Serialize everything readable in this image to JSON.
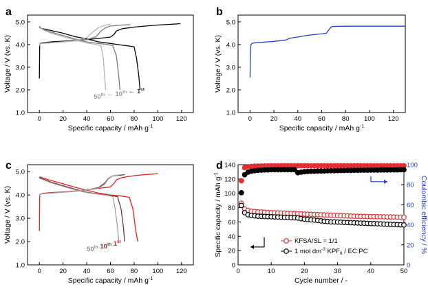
{
  "panels": {
    "a": {
      "label": "a",
      "chart_data": {
        "type": "line",
        "xlabel": "Specific capacity / mAh g",
        "xlabel_sup": "-1",
        "ylabel": "Voltage / V (vs. K)",
        "xlim": [
          -10,
          130
        ],
        "ylim": [
          1.0,
          5.3
        ],
        "xticks": [
          0,
          20,
          40,
          60,
          80,
          100,
          120
        ],
        "yticks": [
          1.0,
          2.0,
          3.0,
          4.0,
          5.0
        ],
        "cycle_labels": [
          {
            "text": "50",
            "sup": "th",
            "color": "#9a9a9a"
          },
          {
            "text": "← 10",
            "sup": "th",
            "color": "#9a9a9a"
          },
          {
            "text": "← 1",
            "sup": "st",
            "color": "#333333"
          }
        ],
        "series": [
          {
            "name": "1st charge",
            "color": "#000000",
            "x": [
              0,
              0.3,
              1,
              2,
              5,
              10,
              20,
              30,
              40,
              50,
              60,
              63,
              65,
              70,
              80,
              90,
              100,
              110,
              119
            ],
            "y": [
              2.5,
              4.0,
              4.05,
              4.07,
              4.09,
              4.12,
              4.15,
              4.18,
              4.22,
              4.27,
              4.33,
              4.45,
              4.6,
              4.7,
              4.77,
              4.82,
              4.86,
              4.89,
              4.92
            ]
          },
          {
            "name": "1st discharge",
            "color": "#000000",
            "x": [
              0,
              1,
              5,
              10,
              20,
              30,
              40,
              50,
              60,
              70,
              75,
              80,
              82,
              84,
              85
            ],
            "y": [
              4.8,
              4.72,
              4.68,
              4.62,
              4.5,
              4.35,
              4.25,
              4.12,
              4.05,
              3.97,
              3.94,
              3.9,
              3.4,
              2.6,
              2.0
            ]
          },
          {
            "name": "10th charge",
            "color": "#7a7a7a",
            "x": [
              0,
              0.5,
              2,
              10,
              20,
              30,
              40,
              48,
              52,
              56,
              60,
              70,
              77
            ],
            "y": [
              3.95,
              4.02,
              4.05,
              4.08,
              4.12,
              4.16,
              4.22,
              4.35,
              4.6,
              4.75,
              4.82,
              4.86,
              4.88
            ]
          },
          {
            "name": "10th discharge",
            "color": "#7a7a7a",
            "x": [
              0,
              5,
              10,
              20,
              30,
              40,
              50,
              58,
              62,
              65,
              67,
              68
            ],
            "y": [
              4.75,
              4.65,
              4.55,
              4.4,
              4.25,
              4.12,
              4.05,
              4.0,
              3.95,
              3.5,
              2.6,
              2.0
            ]
          },
          {
            "name": "50th charge",
            "color": "#b3b3b3",
            "x": [
              0,
              0.5,
              2,
              10,
              20,
              30,
              40,
              45,
              50,
              55,
              60
            ],
            "y": [
              3.95,
              4.02,
              4.05,
              4.08,
              4.12,
              4.16,
              4.3,
              4.55,
              4.75,
              4.85,
              4.9
            ]
          },
          {
            "name": "50th discharge",
            "color": "#b3b3b3",
            "x": [
              0,
              5,
              10,
              20,
              30,
              40,
              48,
              52,
              54,
              55,
              56
            ],
            "y": [
              4.75,
              4.6,
              4.5,
              4.35,
              4.2,
              4.07,
              4.0,
              3.95,
              3.4,
              2.6,
              2.0
            ]
          }
        ]
      }
    },
    "b": {
      "label": "b",
      "chart_data": {
        "type": "line",
        "xlabel": "Specific capacity / mAh g",
        "xlabel_sup": "-1",
        "ylabel": "Voltage / V (vs. K)",
        "xlim": [
          -10,
          130
        ],
        "ylim": [
          1.0,
          5.3
        ],
        "xticks": [
          0,
          20,
          40,
          60,
          80,
          100,
          120
        ],
        "yticks": [
          1.0,
          2.0,
          3.0,
          4.0,
          5.0
        ],
        "series": [
          {
            "name": "charge",
            "color": "#1f3fbf",
            "x": [
              0,
              0.3,
              0.8,
              2,
              5,
              10,
              15,
              20,
              25,
              30,
              33,
              36,
              40,
              45,
              50,
              55,
              60,
              64,
              66,
              68,
              70,
              80,
              90,
              100,
              110,
              120,
              130
            ],
            "y": [
              2.55,
              3.7,
              4.0,
              4.06,
              4.08,
              4.1,
              4.12,
              4.14,
              4.17,
              4.2,
              4.27,
              4.3,
              4.33,
              4.38,
              4.42,
              4.45,
              4.47,
              4.5,
              4.65,
              4.78,
              4.8,
              4.81,
              4.81,
              4.81,
              4.81,
              4.81,
              4.81
            ]
          }
        ]
      }
    },
    "c": {
      "label": "c",
      "chart_data": {
        "type": "line",
        "xlabel": "Specific capacity / mAh g",
        "xlabel_sup": "-1",
        "ylabel": "Voltage / V (vs. K)",
        "xlim": [
          -10,
          130
        ],
        "ylim": [
          1.0,
          5.3
        ],
        "xticks": [
          0,
          20,
          40,
          60,
          80,
          100,
          120
        ],
        "yticks": [
          1.0,
          2.0,
          3.0,
          4.0,
          5.0
        ],
        "cycle_labels": [
          {
            "text": "50",
            "sup": "th",
            "color": "#8a8a8a"
          },
          {
            "text": "10",
            "sup": "th",
            "color": "#7a3030"
          },
          {
            "text": "1",
            "sup": "st",
            "color": "#e02020"
          }
        ],
        "series": [
          {
            "name": "1st charge",
            "color": "#e02020",
            "x": [
              0,
              0.3,
              1,
              2,
              5,
              10,
              20,
              30,
              40,
              50,
              60,
              63,
              65,
              70,
              80,
              90,
              100
            ],
            "y": [
              2.45,
              4.0,
              4.04,
              4.06,
              4.08,
              4.1,
              4.13,
              4.17,
              4.22,
              4.28,
              4.35,
              4.5,
              4.65,
              4.75,
              4.83,
              4.88,
              4.91
            ]
          },
          {
            "name": "1st discharge",
            "color": "#e02020",
            "x": [
              0,
              5,
              10,
              20,
              30,
              40,
              50,
              60,
              70,
              76,
              79,
              81,
              83
            ],
            "y": [
              4.78,
              4.7,
              4.62,
              4.48,
              4.33,
              4.2,
              4.08,
              4.0,
              3.95,
              3.9,
              3.4,
              2.6,
              2.0
            ]
          },
          {
            "name": "10th charge",
            "color": "#7a3030",
            "x": [
              0,
              0.5,
              2,
              10,
              20,
              30,
              40,
              50,
              55,
              58,
              62,
              72
            ],
            "y": [
              3.95,
              4.02,
              4.05,
              4.08,
              4.12,
              4.16,
              4.22,
              4.32,
              4.5,
              4.7,
              4.82,
              4.87
            ]
          },
          {
            "name": "10th discharge",
            "color": "#7a3030",
            "x": [
              0,
              5,
              10,
              20,
              30,
              40,
              50,
              60,
              66,
              69,
              71,
              72
            ],
            "y": [
              4.75,
              4.65,
              4.55,
              4.4,
              4.25,
              4.12,
              4.04,
              3.98,
              3.93,
              3.4,
              2.6,
              2.0
            ]
          },
          {
            "name": "50th charge",
            "color": "#a0a0a0",
            "x": [
              0,
              0.5,
              2,
              10,
              20,
              30,
              40,
              50,
              55,
              58,
              62,
              68
            ],
            "y": [
              3.95,
              4.02,
              4.05,
              4.08,
              4.12,
              4.16,
              4.22,
              4.3,
              4.45,
              4.68,
              4.82,
              4.87
            ]
          },
          {
            "name": "50th discharge",
            "color": "#a0a0a0",
            "x": [
              0,
              5,
              10,
              20,
              30,
              40,
              50,
              58,
              62,
              64,
              66,
              67
            ],
            "y": [
              4.72,
              4.62,
              4.52,
              4.37,
              4.22,
              4.1,
              4.03,
              3.98,
              3.93,
              3.4,
              2.6,
              2.0
            ]
          }
        ]
      }
    },
    "d": {
      "label": "d",
      "chart_data": {
        "type": "scatter",
        "xlabel": "Cycle number / -",
        "ylabel": "Specific capacity / mAh g",
        "ylabel_sup": "-1",
        "y2label": "Coulombic efficiency / %",
        "xlim": [
          0,
          50
        ],
        "ylim": [
          0,
          140
        ],
        "y2lim": [
          0,
          100
        ],
        "xticks": [
          0,
          10,
          20,
          30,
          40,
          50
        ],
        "yticks": [
          0,
          20,
          40,
          60,
          80,
          100,
          120,
          140
        ],
        "y2ticks": [
          0,
          20,
          40,
          60,
          80,
          100
        ],
        "legend": [
          {
            "text": "KFSA/SL = 1/1",
            "color": "#e03030"
          },
          {
            "text": "1 mol dm",
            "sup": "-3",
            "mid": " KPF",
            "sub": "6",
            "tail": " / EC:PC",
            "color": "#000000"
          }
        ],
        "x": [
          1,
          2,
          3,
          4,
          5,
          6,
          7,
          8,
          9,
          10,
          11,
          12,
          13,
          14,
          15,
          16,
          17,
          18,
          19,
          20,
          21,
          22,
          23,
          24,
          25,
          26,
          27,
          28,
          29,
          30,
          31,
          32,
          33,
          34,
          35,
          36,
          37,
          38,
          39,
          40,
          41,
          42,
          43,
          44,
          45,
          46,
          47,
          48,
          49,
          50
        ],
        "series": [
          {
            "name": "KFSA/SL = 1/1 capacity",
            "axis": "left",
            "color": "#e03030",
            "fill": "#ffffff",
            "values": [
              86,
              78,
              76,
              75,
              74.5,
              74,
              73.8,
              73.5,
              73.2,
              73,
              72.8,
              72.6,
              72.4,
              72.2,
              72,
              71.8,
              71.6,
              71.4,
              71.2,
              71,
              70.8,
              70.6,
              70.4,
              70.2,
              70,
              69.8,
              69.6,
              69.4,
              69.2,
              69,
              68.8,
              68.6,
              68.4,
              68.2,
              68,
              67.9,
              67.8,
              67.7,
              67.6,
              67.5,
              67.4,
              67.3,
              67.2,
              67.1,
              67,
              66.9,
              66.8,
              66.7,
              66.6,
              66.5
            ]
          },
          {
            "name": "1 mol dm-3 KPF6 / EC:PC capacity",
            "axis": "left",
            "color": "#000000",
            "fill": "#ffffff",
            "values": [
              83,
              73,
              70,
              69,
              68.5,
              68,
              67.8,
              67.6,
              67.4,
              67.2,
              67,
              66.8,
              66.6,
              66.4,
              66.2,
              66,
              65.8,
              65.5,
              64.5,
              64,
              63.5,
              63,
              62.5,
              62,
              61.5,
              61,
              60.5,
              60,
              60,
              59.8,
              59.6,
              59.4,
              59.2,
              59,
              58.8,
              58.6,
              58.4,
              58.2,
              58,
              57.8,
              57.6,
              57.4,
              57.2,
              57,
              56.8,
              56.6,
              56.4,
              56.2,
              56,
              55.8
            ]
          },
          {
            "name": "KFSA/SL = 1/1 efficiency",
            "axis": "right",
            "color": "#e03030",
            "fill": "#e03030",
            "values": [
              84,
              97,
              98,
              98.3,
              98.5,
              98.6,
              98.7,
              98.8,
              98.8,
              98.9,
              98.9,
              98.9,
              99,
              99,
              99,
              99,
              99,
              99,
              99,
              99,
              99,
              99,
              99,
              99,
              99,
              99,
              99,
              99,
              99,
              99,
              99,
              99,
              99,
              99,
              99,
              99,
              99,
              99,
              99,
              99,
              99,
              99,
              99,
              99,
              99,
              99,
              99,
              99,
              99,
              99
            ]
          },
          {
            "name": "1 mol dm-3 KPF6 / EC:PC efficiency",
            "axis": "right",
            "color": "#000000",
            "fill": "#000000",
            "values": [
              72,
              90,
              92.5,
              93.5,
              94,
              94.3,
              94.5,
              94.7,
              94.8,
              94.9,
              95,
              95,
              95,
              95,
              95,
              95,
              95,
              92,
              92.5,
              93,
              93.2,
              93.4,
              93.5,
              93.6,
              93.7,
              93.8,
              93.9,
              94,
              94,
              94.1,
              94.2,
              94.2,
              94.3,
              94.3,
              94.4,
              94.4,
              94.5,
              94.5,
              94.5,
              94.6,
              94.6,
              94.6,
              94.7,
              94.7,
              94.7,
              94.8,
              94.8,
              94.8,
              94.9,
              94.9
            ]
          }
        ]
      }
    }
  }
}
